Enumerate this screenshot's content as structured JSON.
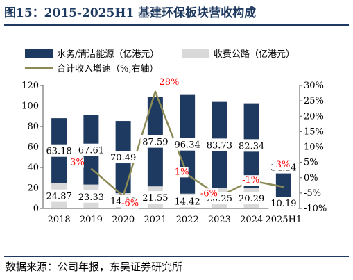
{
  "title": "图15：2015-2025H1 基建环保板块营收构成",
  "source": "数据来源：公司年报，东吴证券研究所",
  "colors": {
    "navy": "#1f3a60",
    "gray": "#d9d9d9",
    "olive": "#8c8a55",
    "red": "#ff0000"
  },
  "chart_data": {
    "type": "bar",
    "categories": [
      "2018",
      "2019",
      "2020",
      "2021",
      "2022",
      "2023",
      "2024",
      "2025H1"
    ],
    "series": [
      {
        "name": "水务/清洁能源（亿港元）",
        "type": "bar",
        "values": [
          63.18,
          67.61,
          70.49,
          87.59,
          96.34,
          83.73,
          82.34,
          34.14
        ],
        "labels": [
          "63.18",
          "67.61",
          "70.49",
          "87.59",
          "96.34",
          "83.73",
          "82.34",
          "34.14"
        ]
      },
      {
        "name": "收费公路（亿港元）",
        "type": "bar",
        "values": [
          24.87,
          23.33,
          14.9,
          21.55,
          14.42,
          20.25,
          20.29,
          10.19
        ],
        "labels": [
          "24.87",
          "23.33",
          "14.90",
          "21.55",
          "14.42",
          "20.25",
          "20.29",
          "10.19"
        ]
      },
      {
        "name": "合计收入增速（%,右轴）",
        "type": "line",
        "axis": "right",
        "values": [
          null,
          3,
          -6,
          28,
          1,
          -6,
          -1,
          -3
        ],
        "labels": [
          "",
          "3%",
          "-6%",
          "28%",
          "1%",
          "-6%",
          "-1%",
          "-3%"
        ]
      }
    ],
    "y_left": {
      "range": [
        0,
        120
      ],
      "ticks": [
        "0",
        "20",
        "40",
        "60",
        "80",
        "100",
        "120"
      ]
    },
    "y_right": {
      "range": [
        -10,
        30
      ],
      "ticks": [
        "-10%",
        "-5%",
        "0%",
        "5%",
        "10%",
        "15%",
        "20%",
        "25%",
        "30%"
      ]
    },
    "legend_position": "top",
    "grid": false
  }
}
